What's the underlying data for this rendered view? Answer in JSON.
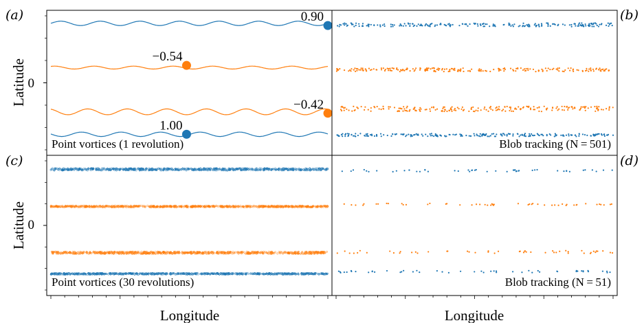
{
  "figure": {
    "xlabel": "Longitude",
    "ylabel": "Latitude",
    "ytick_label": "0"
  },
  "colors": {
    "blue": "#1f77b4",
    "orange": "#ff7f0e"
  },
  "chart_data": [
    {
      "panel": "(a)",
      "type": "line",
      "caption": "Point vortices (1 revolution)",
      "xlabel": "",
      "ylabel": "Latitude",
      "x_range": [
        0,
        1
      ],
      "y_range": [
        -1,
        1
      ],
      "series": [
        {
          "color": "blue",
          "y": 0.82,
          "amp": 0.03,
          "waves": 7
        },
        {
          "color": "orange",
          "y": 0.21,
          "amp": 0.02,
          "waves": 7
        },
        {
          "color": "orange",
          "y": -0.4,
          "amp": 0.04,
          "waves": 7
        },
        {
          "color": "blue",
          "y": -0.71,
          "amp": 0.03,
          "waves": 7
        }
      ],
      "annotations": [
        {
          "label": "0.90",
          "color": "blue",
          "x": 1.0,
          "y": 0.79
        },
        {
          "label": "−0.54",
          "color": "orange",
          "x": 0.49,
          "y": 0.24
        },
        {
          "label": "−0.42",
          "color": "orange",
          "x": 1.0,
          "y": -0.42
        },
        {
          "label": "1.00",
          "color": "blue",
          "x": 0.49,
          "y": -0.71
        }
      ]
    },
    {
      "panel": "(b)",
      "type": "scatter",
      "caption": "Blob tracking (N = 501)",
      "x_range": [
        0,
        1
      ],
      "y_range": [
        -1,
        1
      ],
      "series": [
        {
          "color": "blue",
          "y": 0.8,
          "spread": 0.05,
          "n": 220
        },
        {
          "color": "orange",
          "y": 0.18,
          "spread": 0.05,
          "n": 220
        },
        {
          "color": "orange",
          "y": -0.36,
          "spread": 0.07,
          "n": 220
        },
        {
          "color": "blue",
          "y": -0.72,
          "spread": 0.04,
          "n": 220
        }
      ]
    },
    {
      "panel": "(c)",
      "type": "scatter",
      "caption": "Point vortices (30 revolutions)",
      "xlabel": "Longitude",
      "ylabel": "Latitude",
      "x_range": [
        0,
        1
      ],
      "y_range": [
        -1,
        1
      ],
      "series": [
        {
          "color": "blue",
          "y": 0.8,
          "spread": 0.03,
          "n": 700
        },
        {
          "color": "orange",
          "y": 0.27,
          "spread": 0.02,
          "n": 700
        },
        {
          "color": "orange",
          "y": -0.39,
          "spread": 0.03,
          "n": 700
        },
        {
          "color": "blue",
          "y": -0.69,
          "spread": 0.02,
          "n": 700
        }
      ]
    },
    {
      "panel": "(d)",
      "type": "scatter",
      "caption": "Blob tracking (N = 51)",
      "xlabel": "Longitude",
      "x_range": [
        0,
        1
      ],
      "y_range": [
        -1,
        1
      ],
      "series": [
        {
          "color": "blue",
          "y": 0.78,
          "spread": 0.03,
          "n": 50
        },
        {
          "color": "orange",
          "y": 0.3,
          "spread": 0.03,
          "n": 50
        },
        {
          "color": "orange",
          "y": -0.38,
          "spread": 0.04,
          "n": 50
        },
        {
          "color": "blue",
          "y": -0.66,
          "spread": 0.03,
          "n": 50
        }
      ]
    }
  ]
}
